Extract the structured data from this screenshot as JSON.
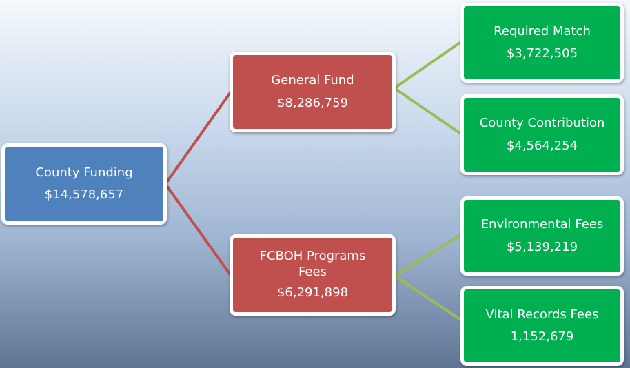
{
  "nodes": [
    {
      "label": "County Funding",
      "value": "$14,578,657"
    },
    {
      "label": "General Fund",
      "value": "$8,286,759"
    },
    {
      "label": "FCBOH Programs Fees",
      "value": "$6,291,898"
    },
    {
      "label": "Required Match",
      "value": "$3,722,505"
    },
    {
      "label": "County Contribution",
      "value": "$4,564,254"
    },
    {
      "label": "Environmental Fees",
      "value": "$5,139,219"
    },
    {
      "label": "Vital Records Fees",
      "value": "1,152,679"
    }
  ]
}
